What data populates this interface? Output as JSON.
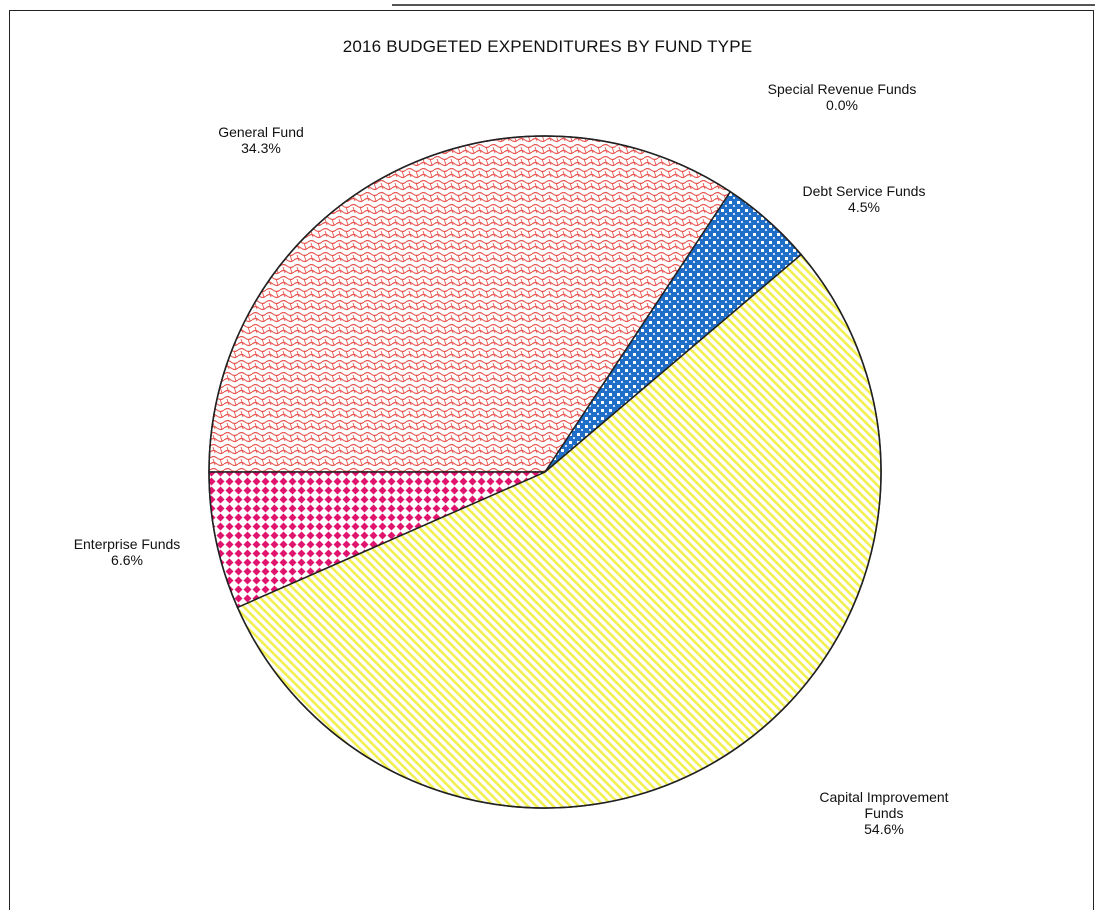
{
  "chart_data": {
    "type": "pie",
    "title": "2016 BUDGETED EXPENDITURES BY FUND TYPE",
    "series": [
      {
        "name": "",
        "slices": [
          {
            "label": "General Fund",
            "value": 34.3,
            "value_label": "34.3%",
            "color": "#e8554f",
            "fill_style": "hatch-curl"
          },
          {
            "label": "Special Revenue  Funds",
            "value": 0.0,
            "value_label": "0.0%",
            "color": "#ffffff",
            "fill_style": "none"
          },
          {
            "label": "Debt Service Funds",
            "value": 4.5,
            "value_label": "4.5%",
            "color": "#1f6fc9",
            "fill_style": "dot-grid"
          },
          {
            "label": "Capital Improvement Funds",
            "value": 54.6,
            "value_label": "54.6%",
            "color": "#f2f050",
            "fill_style": "diagonal-stripe"
          },
          {
            "label": "Enterprise Funds",
            "value": 6.6,
            "value_label": "6.6%",
            "color": "#e0146e",
            "fill_style": "diamond-grid"
          }
        ]
      }
    ],
    "label_lines": {
      "General Fund": [
        "General Fund",
        "34.3%"
      ],
      "Special Revenue  Funds": [
        "Special Revenue  Funds",
        "0.0%"
      ],
      "Debt Service Funds": [
        "Debt Service Funds",
        "4.5%"
      ],
      "Capital Improvement Funds": [
        "Capital Improvement",
        "Funds",
        "54.6%"
      ],
      "Enterprise Funds": [
        "Enterprise Funds",
        "6.6%"
      ]
    },
    "legend": "none"
  }
}
